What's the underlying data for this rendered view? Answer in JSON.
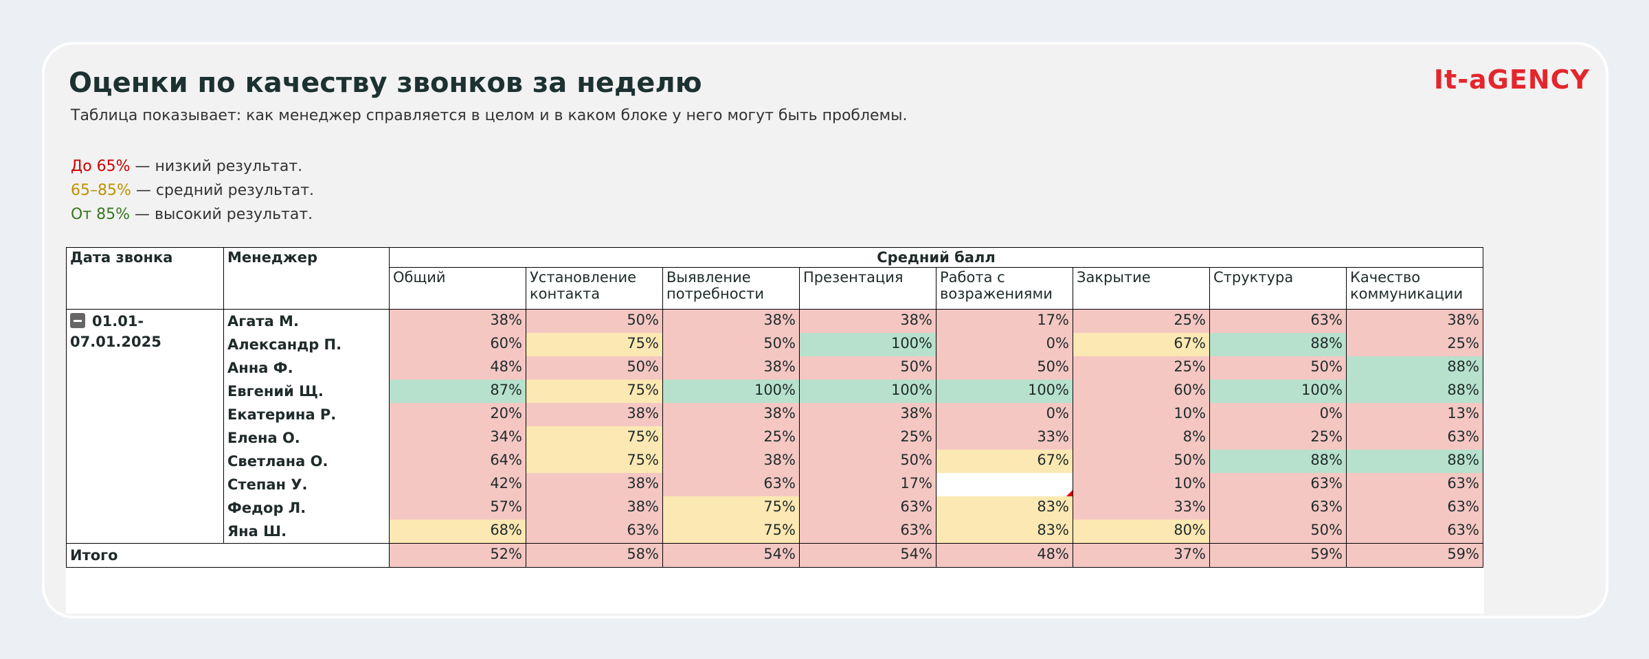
{
  "header": {
    "title": "Оценки по качеству звонков за неделю",
    "subtitle": "Таблица показывает: как менеджер справляется в целом и в каком блоке у него могут быть проблемы.",
    "logo": "It-aGENCY"
  },
  "legend": [
    {
      "range": "До 65%",
      "text": " — низкий результат.",
      "color": "#cc0000"
    },
    {
      "range": "65–85%",
      "text": " — средний результат.",
      "color": "#bf9000"
    },
    {
      "range": "От 85%",
      "text": " — высокий результат.",
      "color": "#38761d"
    }
  ],
  "table": {
    "col_date": "Дата звонка",
    "col_manager": "Менеджер",
    "group_header": "Средний балл",
    "columns": [
      "Общий",
      "Установление контакта",
      "Выявление потребности",
      "Презентация",
      "Работа с возражениями",
      "Закрытие",
      "Структура",
      "Качество коммуникации"
    ],
    "thresholds": {
      "low": 65,
      "high": 85
    },
    "cell_colors": {
      "low": "#f4c7c3",
      "mid": "#fce8b2",
      "high": "#b7e1cd",
      "empty": "#ffffff"
    },
    "date": "01.01-07.01.2025",
    "rows": [
      {
        "manager": "Агата М.",
        "cells": [
          "38%",
          "50%",
          "38%",
          "38%",
          "17%",
          "25%",
          "63%",
          "38%"
        ]
      },
      {
        "manager": "Александр П.",
        "cells": [
          "60%",
          "75%",
          "50%",
          "100%",
          "0%",
          "67%",
          "88%",
          "25%"
        ]
      },
      {
        "manager": "Анна Ф.",
        "cells": [
          "48%",
          "50%",
          "38%",
          "50%",
          "50%",
          "25%",
          "50%",
          "88%"
        ]
      },
      {
        "manager": "Евгений Щ.",
        "cells": [
          "87%",
          "75%",
          "100%",
          "100%",
          "100%",
          "60%",
          "100%",
          "88%"
        ]
      },
      {
        "manager": "Екатерина Р.",
        "cells": [
          "20%",
          "38%",
          "38%",
          "38%",
          "0%",
          "10%",
          "0%",
          "13%"
        ]
      },
      {
        "manager": "Елена О.",
        "cells": [
          "34%",
          "75%",
          "25%",
          "25%",
          "33%",
          "8%",
          "25%",
          "63%"
        ]
      },
      {
        "manager": "Светлана О.",
        "cells": [
          "64%",
          "75%",
          "38%",
          "50%",
          "67%",
          "50%",
          "88%",
          "88%"
        ]
      },
      {
        "manager": "Степан У.",
        "cells": [
          "42%",
          "38%",
          "63%",
          "17%",
          null,
          "10%",
          "63%",
          "63%"
        ]
      },
      {
        "manager": "Федор Л.",
        "cells": [
          "57%",
          "38%",
          "75%",
          "63%",
          "83%",
          "33%",
          "63%",
          "63%"
        ]
      },
      {
        "manager": "Яна Ш.",
        "cells": [
          "68%",
          "63%",
          "75%",
          "63%",
          "83%",
          "80%",
          "50%",
          "63%"
        ]
      }
    ],
    "total": {
      "label": "Итого",
      "cells": [
        "52%",
        "58%",
        "54%",
        "54%",
        "48%",
        "37%",
        "59%",
        "59%"
      ]
    }
  }
}
